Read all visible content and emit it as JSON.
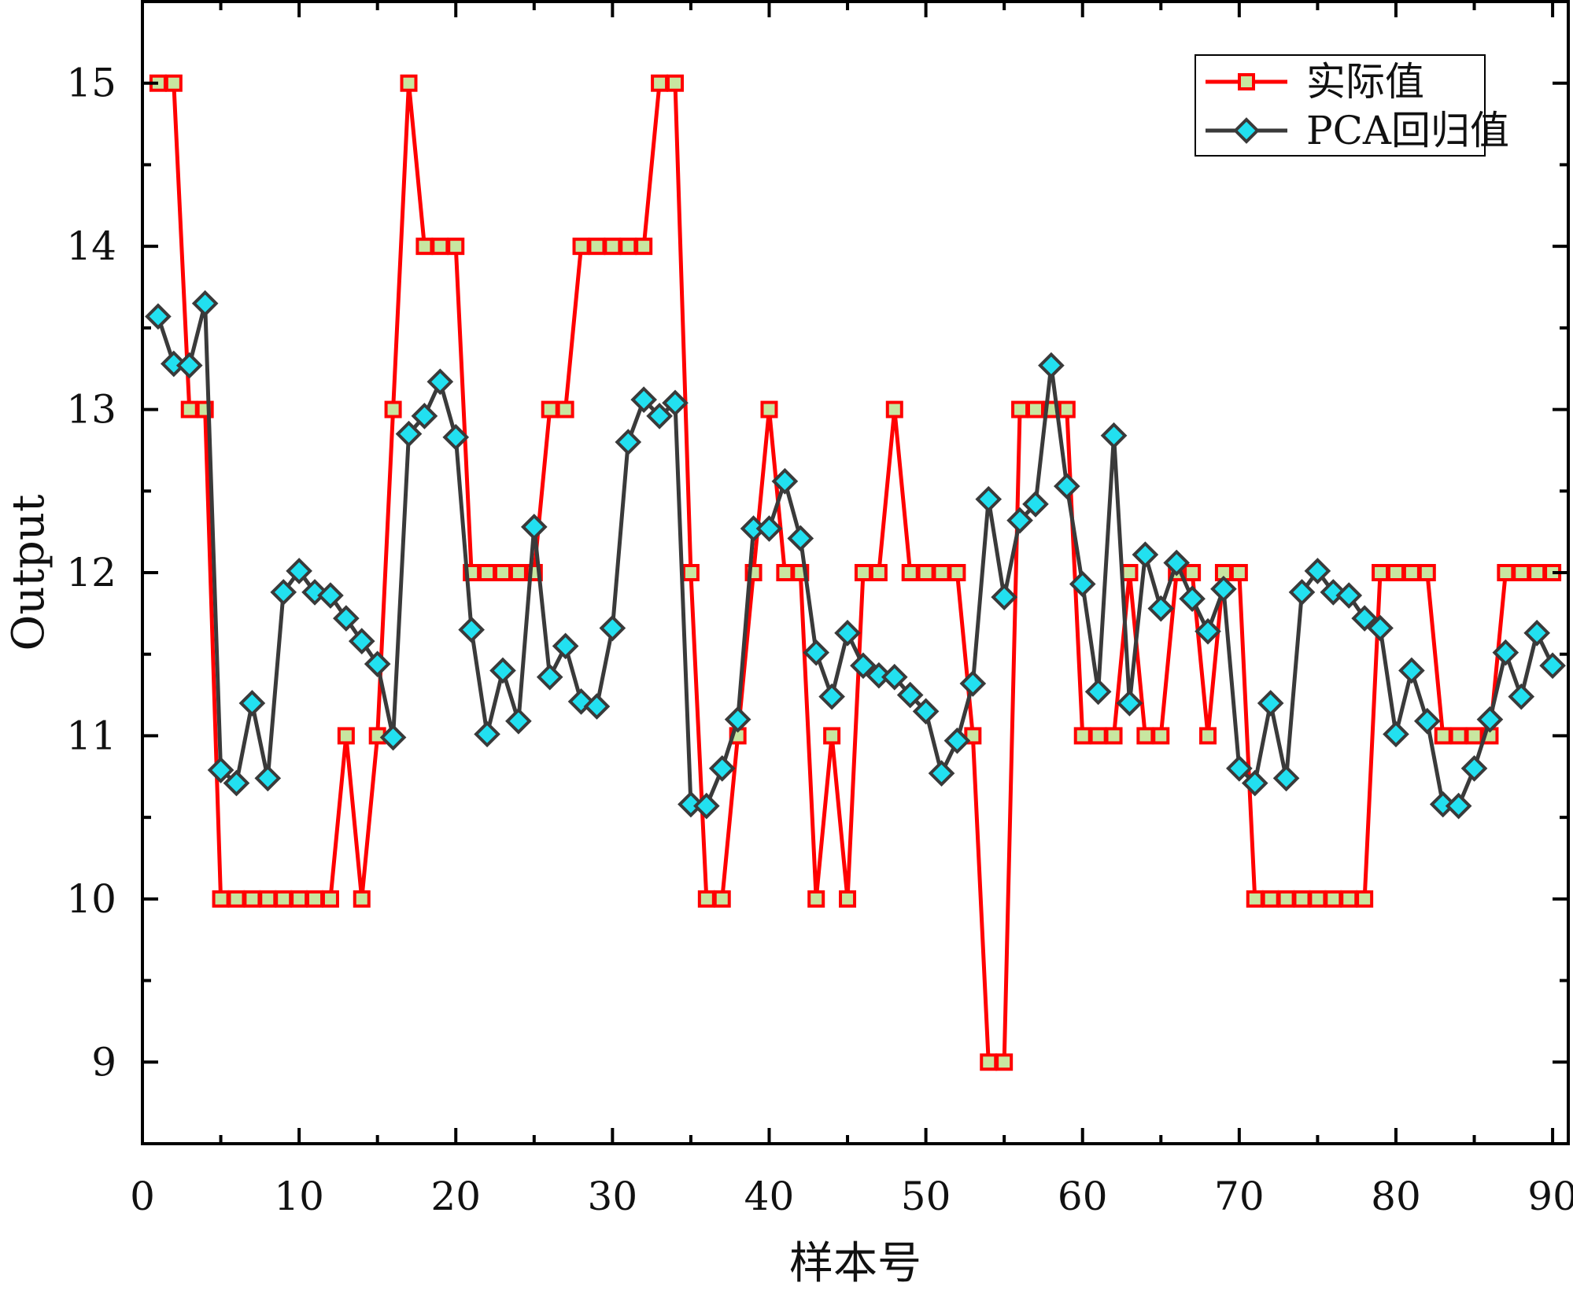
{
  "chart_data": {
    "type": "line",
    "title": "",
    "xlabel": "样本号",
    "ylabel": "Output",
    "xlim": [
      0,
      91
    ],
    "ylim": [
      8.5,
      15.5
    ],
    "xticks": [
      0,
      10,
      20,
      30,
      40,
      50,
      60,
      70,
      80,
      90
    ],
    "yticks": [
      9,
      10,
      11,
      12,
      13,
      14,
      15
    ],
    "legend_position": "top-right",
    "grid": false,
    "x": [
      1,
      2,
      3,
      4,
      5,
      6,
      7,
      8,
      9,
      10,
      11,
      12,
      13,
      14,
      15,
      16,
      17,
      18,
      19,
      20,
      21,
      22,
      23,
      24,
      25,
      26,
      27,
      28,
      29,
      30,
      31,
      32,
      33,
      34,
      35,
      36,
      37,
      38,
      39,
      40,
      41,
      42,
      43,
      44,
      45,
      46,
      47,
      48,
      49,
      50,
      51,
      52,
      53,
      54,
      55,
      56,
      57,
      58,
      59,
      60,
      61,
      62,
      63,
      64,
      65,
      66,
      67,
      68,
      69,
      70,
      71,
      72,
      73,
      74,
      75,
      76,
      77,
      78,
      79,
      80,
      81,
      82,
      83,
      84,
      85,
      86,
      87,
      88,
      89,
      90
    ],
    "series": [
      {
        "name": "实际值",
        "color": "#ff0000",
        "marker": "square",
        "marker_fill": "#c8e6a0",
        "values": [
          15,
          15,
          13,
          13,
          10,
          10,
          10,
          10,
          10,
          10,
          10,
          10,
          11,
          10,
          11,
          13,
          15,
          14,
          14,
          14,
          12,
          12,
          12,
          12,
          12,
          13,
          13,
          14,
          14,
          14,
          14,
          14,
          15,
          15,
          12,
          10,
          10,
          11,
          12,
          13,
          12,
          12,
          10,
          11,
          10,
          12,
          12,
          13,
          12,
          12,
          12,
          12,
          11,
          9,
          9,
          13,
          13,
          13,
          13,
          11,
          11,
          11,
          12,
          11,
          11,
          12,
          12,
          11,
          12,
          12,
          10,
          10,
          10,
          10,
          10,
          10,
          10,
          10,
          12,
          12,
          12,
          12,
          11,
          11,
          11,
          11,
          12,
          12,
          12,
          12
        ]
      },
      {
        "name": "PCA回归值",
        "color": "#3a3a3a",
        "marker": "diamond",
        "marker_fill": "#22e0f0",
        "values": [
          13.57,
          13.28,
          13.27,
          13.65,
          10.79,
          10.71,
          11.2,
          10.74,
          11.88,
          12.01,
          11.88,
          11.86,
          11.72,
          11.58,
          11.44,
          10.99,
          12.85,
          12.96,
          13.17,
          12.83,
          11.65,
          11.01,
          11.4,
          11.09,
          12.28,
          11.36,
          11.55,
          11.21,
          11.18,
          11.66,
          12.8,
          13.06,
          12.96,
          13.04,
          10.58,
          10.57,
          10.8,
          11.1,
          12.27,
          12.27,
          12.56,
          12.21,
          11.51,
          11.24,
          11.63,
          11.43,
          11.37,
          11.36,
          11.25,
          11.15,
          10.77,
          10.97,
          11.32,
          12.45,
          11.85,
          12.32,
          12.42,
          13.27,
          12.53,
          11.93,
          11.27,
          12.84,
          11.2,
          12.11,
          11.78,
          12.06,
          11.84,
          11.64,
          11.9,
          10.8,
          10.71,
          11.2,
          10.74,
          11.88,
          12.01,
          11.88,
          11.86,
          11.72,
          11.66,
          11.01,
          11.4,
          11.09,
          10.58,
          10.57,
          10.8,
          11.1,
          11.51,
          11.24,
          11.63,
          11.43
        ]
      }
    ]
  }
}
